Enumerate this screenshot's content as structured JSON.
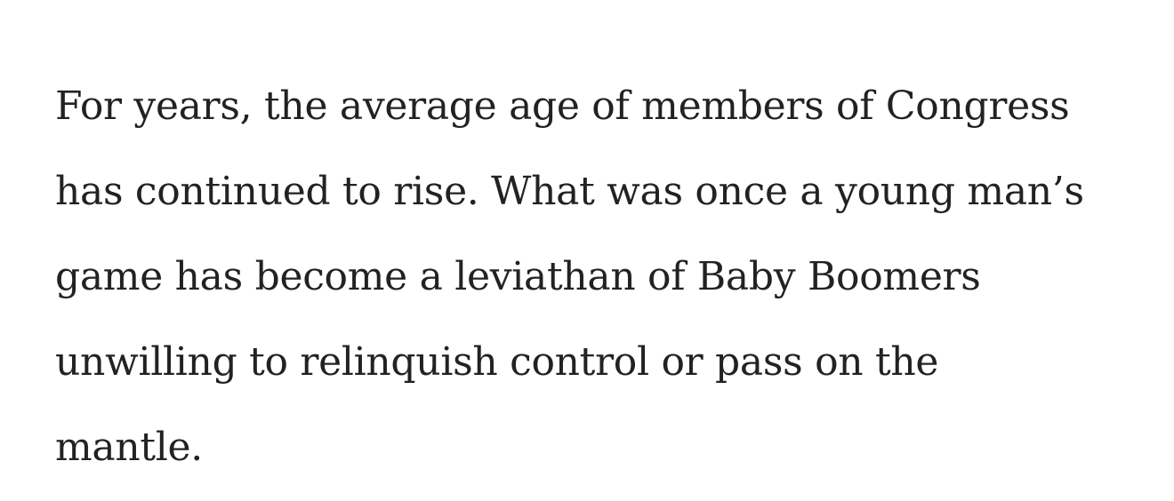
{
  "article": {
    "paragraph_lines": [
      "For years, the average age of members of Congress",
      "has continued to rise. What was once a young man’s",
      "game has become a leviathan of Baby Boomers",
      "unwilling to relinquish control or pass on the",
      "mantle."
    ]
  }
}
